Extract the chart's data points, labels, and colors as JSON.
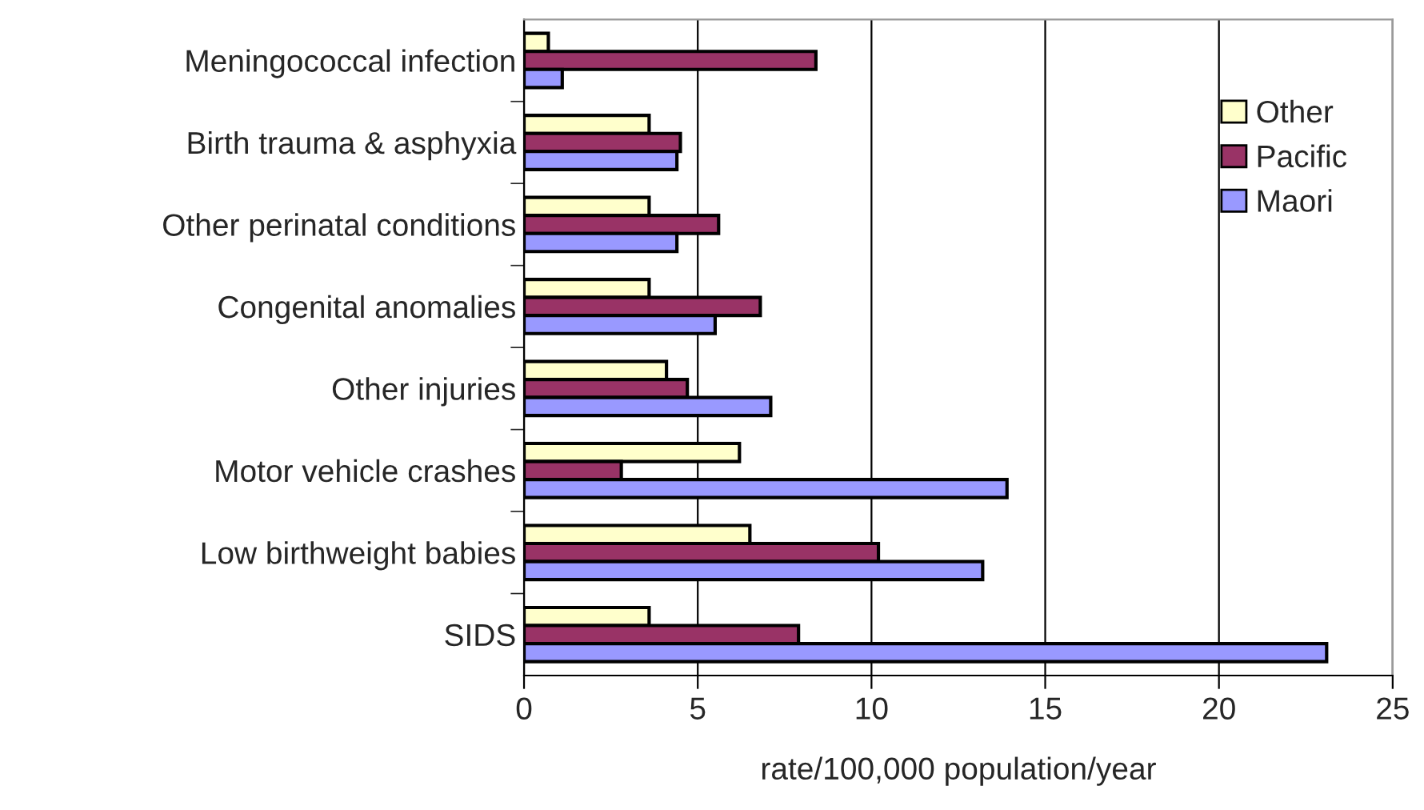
{
  "chart_data": {
    "type": "bar",
    "orientation": "horizontal",
    "xlabel": "rate/100,000 population/year",
    "categories": [
      "Meningococcal infection",
      "Birth trauma & asphyxia",
      "Other perinatal conditions",
      "Congenital anomalies",
      "Other injuries",
      "Motor vehicle crashes",
      "Low birthweight babies",
      "SIDS"
    ],
    "series": [
      {
        "name": "Other",
        "color": "#ffffcc",
        "values": [
          0.7,
          3.6,
          3.6,
          3.6,
          4.1,
          6.2,
          6.5,
          3.6
        ]
      },
      {
        "name": "Pacific",
        "color": "#993366",
        "values": [
          8.4,
          4.5,
          5.6,
          6.8,
          4.7,
          2.8,
          10.2,
          7.9
        ]
      },
      {
        "name": "Maori",
        "color": "#9999ff",
        "values": [
          1.1,
          4.4,
          4.4,
          5.5,
          7.1,
          13.9,
          13.2,
          23.1
        ]
      }
    ],
    "xlim": [
      0,
      25
    ],
    "xticks": [
      0,
      5,
      10,
      15,
      20,
      25
    ],
    "grid": "x",
    "legend": "top right"
  }
}
